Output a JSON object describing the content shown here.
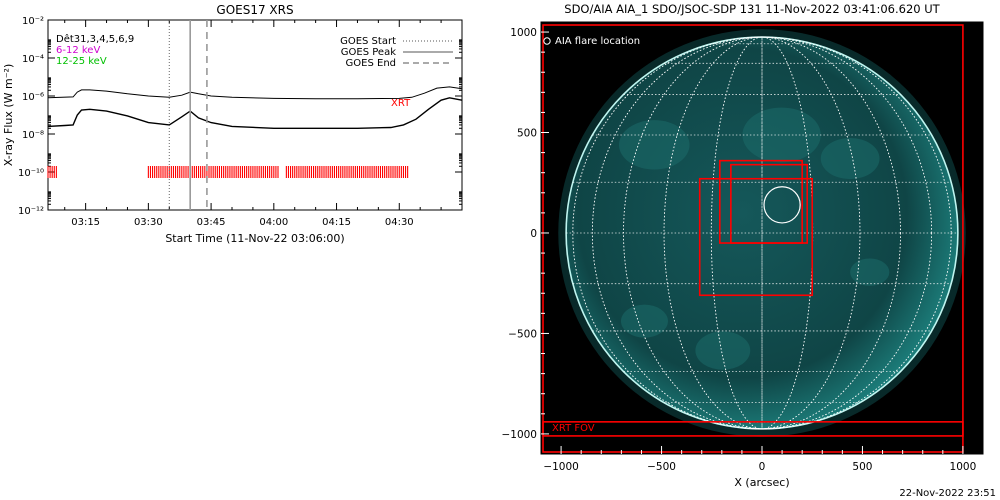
{
  "left_panel": {
    "title": "GOES17 XRS",
    "ylabel": "X-ray Flux (W m⁻²)",
    "xlabel": "Start Time (11-Nov-22 03:06:00)",
    "channels": [
      {
        "label": "Dêt31,3,4,5,6,9",
        "color": "#000000"
      },
      {
        "label": "6-12 keV",
        "color": "#d000d0"
      },
      {
        "label": "12-25 keV",
        "color": "#00c000"
      }
    ],
    "legend": [
      {
        "label": "GOES Start",
        "style": "dotted"
      },
      {
        "label": "GOES Peak",
        "style": "solid"
      },
      {
        "label": "GOES End",
        "style": "dashed"
      }
    ],
    "xrt_label": "XRT",
    "xrt_color": "#ff0000"
  },
  "right_panel": {
    "title": "SDO/AIA AIA_1 SDO/JSOC-SDP 131 11-Nov-2022 03:41:06.620 UT",
    "legend_label": "AIA flare location",
    "xrt_fov_label": "XRT FOV",
    "xlabel": "X (arcsec)",
    "timestamp": "22-Nov-2022 23:51",
    "disk_color": "#0d4d4d",
    "limb_color": "#bff5f0",
    "box_color": "#ff0000"
  },
  "chart_data": [
    {
      "type": "line",
      "title": "GOES17 XRS",
      "xlabel": "Start Time (11-Nov-22 03:06:00)",
      "ylabel": "X-ray Flux (W m⁻²)",
      "yscale": "log",
      "xlim": [
        "03:06",
        "04:45"
      ],
      "ylim": [
        1e-12,
        0.01
      ],
      "x_ticks": [
        "03:15",
        "03:30",
        "03:45",
        "04:00",
        "04:15",
        "04:30"
      ],
      "y_ticks": [
        {
          "value": 1e-12,
          "label": "10⁻¹²"
        },
        {
          "value": 1e-10,
          "label": "10⁻¹⁰"
        },
        {
          "value": 1e-08,
          "label": "10⁻⁸"
        },
        {
          "value": 1e-06,
          "label": "10⁻⁶"
        },
        {
          "value": 0.0001,
          "label": "10⁻⁴"
        },
        {
          "value": 0.01,
          "label": "10⁻²"
        }
      ],
      "events": {
        "goes_start": "03:35",
        "goes_peak": "03:40",
        "goes_end": "03:44"
      },
      "series": [
        {
          "name": "GOES long",
          "x": [
            "03:06",
            "03:12",
            "03:13",
            "03:14",
            "03:16",
            "03:20",
            "03:25",
            "03:30",
            "03:35",
            "03:38",
            "03:40",
            "03:42",
            "03:45",
            "03:50",
            "04:00",
            "04:10",
            "04:20",
            "04:30",
            "04:33",
            "04:36",
            "04:39",
            "04:42",
            "04:45"
          ],
          "y": [
            8e-07,
            9e-07,
            1.6e-06,
            2.1e-06,
            2.1e-06,
            1.8e-06,
            1.3e-06,
            1e-06,
            8.5e-07,
            1.1e-06,
            1.6e-06,
            1.3e-06,
            1e-06,
            8.5e-07,
            7.5e-07,
            7.2e-07,
            7.2e-07,
            7.5e-07,
            8.5e-07,
            1.4e-06,
            2.6e-06,
            3e-06,
            2.4e-06
          ]
        },
        {
          "name": "GOES short",
          "x": [
            "03:06",
            "03:10",
            "03:12",
            "03:13",
            "03:14",
            "03:16",
            "03:20",
            "03:25",
            "03:30",
            "03:35",
            "03:38",
            "03:40",
            "03:42",
            "03:45",
            "03:50",
            "04:00",
            "04:10",
            "04:20",
            "04:28",
            "04:31",
            "04:34",
            "04:37",
            "04:40",
            "04:42",
            "04:45"
          ],
          "y": [
            2.5e-08,
            2.8e-08,
            3e-08,
            1e-07,
            1.8e-07,
            2e-07,
            1.6e-07,
            9e-08,
            4e-08,
            3e-08,
            8e-08,
            1.6e-07,
            7e-08,
            4e-08,
            2.5e-08,
            2e-08,
            2e-08,
            2e-08,
            2.2e-08,
            3e-08,
            6e-08,
            2e-07,
            6e-07,
            8e-07,
            6e-07
          ]
        }
      ],
      "xrt_intervals": [
        [
          "03:06",
          "03:08"
        ],
        [
          "03:30",
          "04:01"
        ],
        [
          "04:03",
          "04:32"
        ]
      ],
      "xrt_flux": 1e-10
    },
    {
      "type": "scatter",
      "title": "SDO/AIA AIA_1 SDO/JSOC-SDP 131 11-Nov-2022 03:41:06.620 UT",
      "xlabel": "X (arcsec)",
      "xlim": [
        -1100,
        1100
      ],
      "ylim": [
        -1100,
        1050
      ],
      "x_ticks": [
        -1000,
        -500,
        0,
        500,
        1000
      ],
      "y_ticks": [
        1000,
        500,
        0,
        -500,
        -1000
      ],
      "solar_radius": 975,
      "flare_location": {
        "x": 100,
        "y": 140,
        "radius": 90
      },
      "boxes": [
        {
          "x0": -210,
          "y0": -50,
          "x1": 200,
          "y1": 360
        },
        {
          "x0": -155,
          "y0": -50,
          "x1": 225,
          "y1": 340
        },
        {
          "x0": -310,
          "y0": -310,
          "x1": 250,
          "y1": 270
        },
        {
          "x0": -1090,
          "y0": -1010,
          "x1": 1000,
          "y1": 1035
        },
        {
          "x0": -1090,
          "y0": -1090,
          "x1": 1000,
          "y1": -940
        }
      ]
    }
  ]
}
